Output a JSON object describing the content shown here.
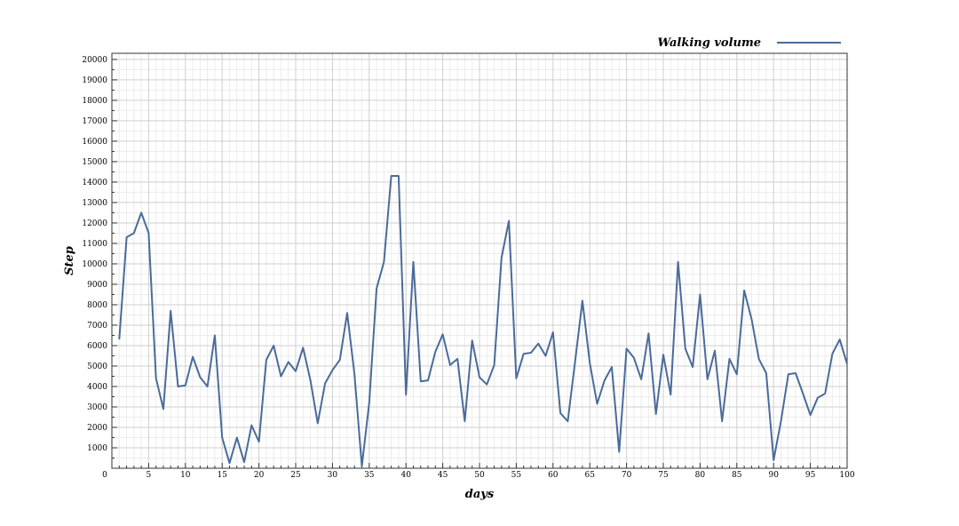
{
  "chart_data": {
    "type": "line",
    "xlabel": "days",
    "ylabel": "Step",
    "xlim": [
      0,
      100
    ],
    "ylim": [
      0,
      20300
    ],
    "x_ticks": [
      0,
      5,
      10,
      15,
      20,
      25,
      30,
      35,
      40,
      45,
      50,
      55,
      60,
      65,
      70,
      75,
      80,
      85,
      90,
      95,
      100
    ],
    "y_ticks": [
      1000,
      2000,
      3000,
      4000,
      5000,
      6000,
      7000,
      8000,
      9000,
      10000,
      11000,
      12000,
      13000,
      14000,
      15000,
      16000,
      17000,
      18000,
      19000,
      20000
    ],
    "grid": true,
    "legend": "top-right",
    "series": [
      {
        "name": "Walking volume",
        "color": "#4a6b9a",
        "x": [
          1,
          2,
          3,
          4,
          5,
          6,
          7,
          8,
          9,
          10,
          11,
          12,
          13,
          14,
          15,
          16,
          17,
          18,
          19,
          20,
          21,
          22,
          23,
          24,
          25,
          26,
          27,
          28,
          29,
          30,
          31,
          32,
          33,
          34,
          35,
          36,
          37,
          38,
          39,
          40,
          41,
          42,
          43,
          44,
          45,
          46,
          47,
          48,
          49,
          50,
          51,
          52,
          53,
          54,
          55,
          56,
          57,
          58,
          59,
          60,
          61,
          62,
          63,
          64,
          65,
          66,
          67,
          68,
          69,
          70,
          71,
          72,
          73,
          74,
          75,
          76,
          77,
          78,
          79,
          80,
          81,
          82,
          83,
          84,
          85,
          86,
          87,
          88,
          89,
          90,
          91,
          92,
          93,
          94,
          95,
          96,
          97,
          98,
          99,
          100
        ],
        "values": [
          6300,
          11300,
          11500,
          12500,
          11500,
          4400,
          2900,
          7700,
          4000,
          4050,
          5450,
          4450,
          4000,
          6500,
          1500,
          250,
          1500,
          300,
          2100,
          1300,
          5300,
          6000,
          4500,
          5200,
          4750,
          5900,
          4300,
          2200,
          4150,
          4800,
          5300,
          7600,
          4600,
          100,
          3200,
          8800,
          10100,
          14300,
          14300,
          3600,
          10100,
          4250,
          4300,
          5700,
          6550,
          5050,
          5350,
          2300,
          6250,
          4450,
          4100,
          5050,
          10300,
          12100,
          4400,
          5600,
          5650,
          6100,
          5500,
          6650,
          2700,
          2300,
          5200,
          8200,
          5150,
          3150,
          4300,
          4950,
          800,
          5850,
          5400,
          4350,
          6600,
          2650,
          5550,
          3600,
          10100,
          5850,
          4950,
          8500,
          4350,
          5750,
          2300,
          5350,
          4600,
          8700,
          7300,
          5350,
          4650,
          400,
          2300,
          4600,
          4650,
          3650,
          2600,
          3450,
          3650,
          5600,
          6300,
          5100
        ]
      }
    ]
  }
}
